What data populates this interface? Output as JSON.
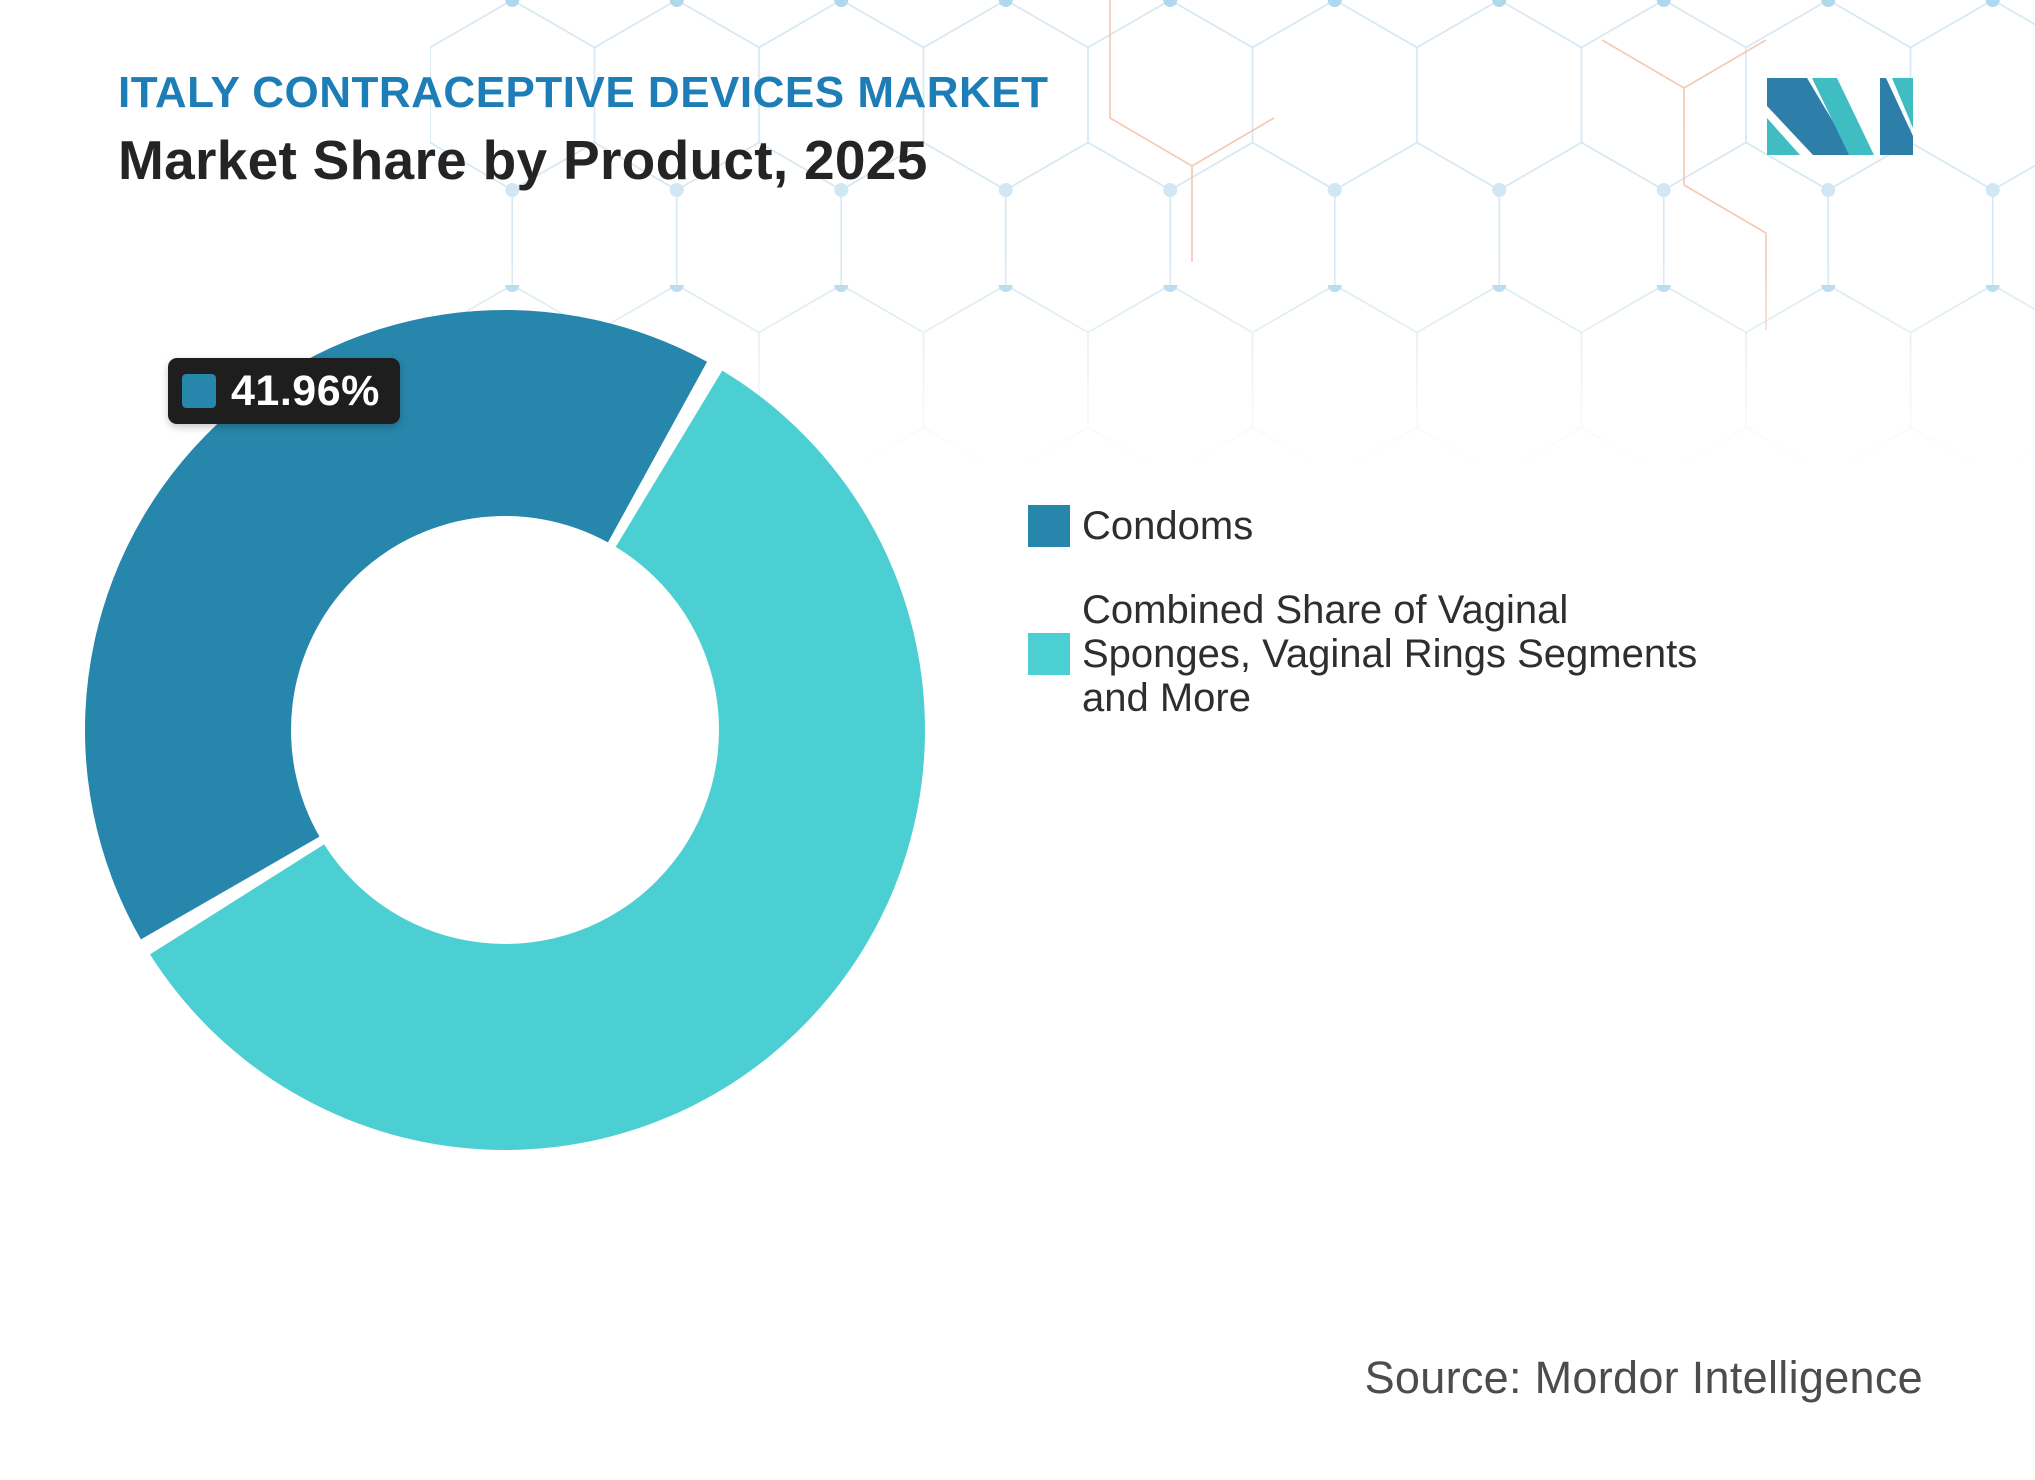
{
  "header": {
    "eyebrow": "ITALY CONTRACEPTIVE DEVICES MARKET",
    "title": "Market Share by Product, 2025"
  },
  "logo": {
    "alt": "Mordor Intelligence logo",
    "colors": {
      "dark": "#2D7FA9",
      "teal": "#3FBDC2"
    }
  },
  "chart_data": {
    "type": "pie",
    "variant": "donut",
    "title": "Market Share by Product, 2025",
    "inner_radius_ratio": 0.51,
    "start_angle_deg": 238.9,
    "legend_position": "right",
    "segments": [
      {
        "label": "Condoms",
        "value": 41.96,
        "color": "#2786AB"
      },
      {
        "label": "Combined Share of Vaginal Sponges, Vaginal Rings Segments and More",
        "value": 58.04,
        "color": "#4CCFD2"
      }
    ],
    "callout": {
      "segment": "Condoms",
      "value_label": "41.96%"
    }
  },
  "legend": {
    "items": [
      {
        "label": "Condoms",
        "color": "#2786AB",
        "label_lines": [
          "Condoms"
        ]
      },
      {
        "label": "Combined Share of Vaginal Sponges, Vaginal Rings Segments and More",
        "color": "#4CCFD2",
        "label_lines": [
          "Combined Share of Vaginal",
          "Sponges, Vaginal Rings Segments",
          "and More"
        ]
      }
    ]
  },
  "source": {
    "text": "Source: Mordor Intelligence"
  }
}
